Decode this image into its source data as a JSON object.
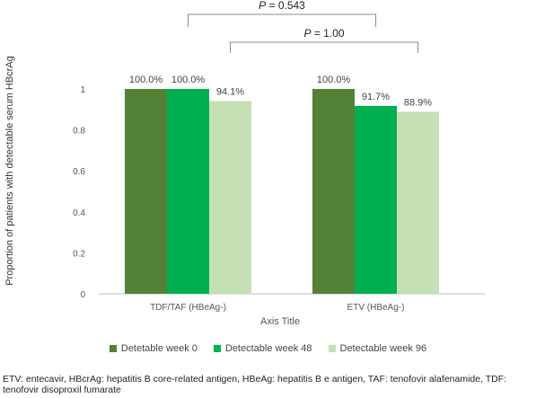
{
  "chart_data": {
    "type": "bar",
    "ylabel": "Proportion of patients with detectable serum HBcrAg",
    "xlabel": "Axis Title",
    "ylim": [
      0,
      1
    ],
    "yticks": [
      "0",
      "0.2",
      "0.4",
      "0.6",
      "0.8",
      "1"
    ],
    "grid": false,
    "legend_position": "bottom",
    "categories": [
      "TDF/TAF (HBeAg-)",
      "ETV (HBeAg-)"
    ],
    "series": [
      {
        "name": "Detetable week 0",
        "values": [
          1.0,
          1.0
        ],
        "labels": [
          "100.0%",
          "100.0%"
        ],
        "color": "#538135"
      },
      {
        "name": "Detectable week 48",
        "values": [
          1.0,
          0.917
        ],
        "labels": [
          "100.0%",
          "91.7%"
        ],
        "color": "#00b050"
      },
      {
        "name": "Detectable week 96",
        "values": [
          0.941,
          0.889
        ],
        "labels": [
          "94.1%",
          "88.9%"
        ],
        "color": "#c5e0b4"
      }
    ],
    "annotations": [
      {
        "text_italic": "P",
        "text_rest": " = 0.543"
      },
      {
        "text_italic": "P",
        "text_rest": " = 1.00"
      }
    ]
  },
  "footnote": "ETV: entecavir, HBcrAg: hepatitis B core-related antigen, HBeAg: hepatitis B e antigen, TAF: tenofovir alafenamide, TDF: tenofovir disoproxil fumarate"
}
